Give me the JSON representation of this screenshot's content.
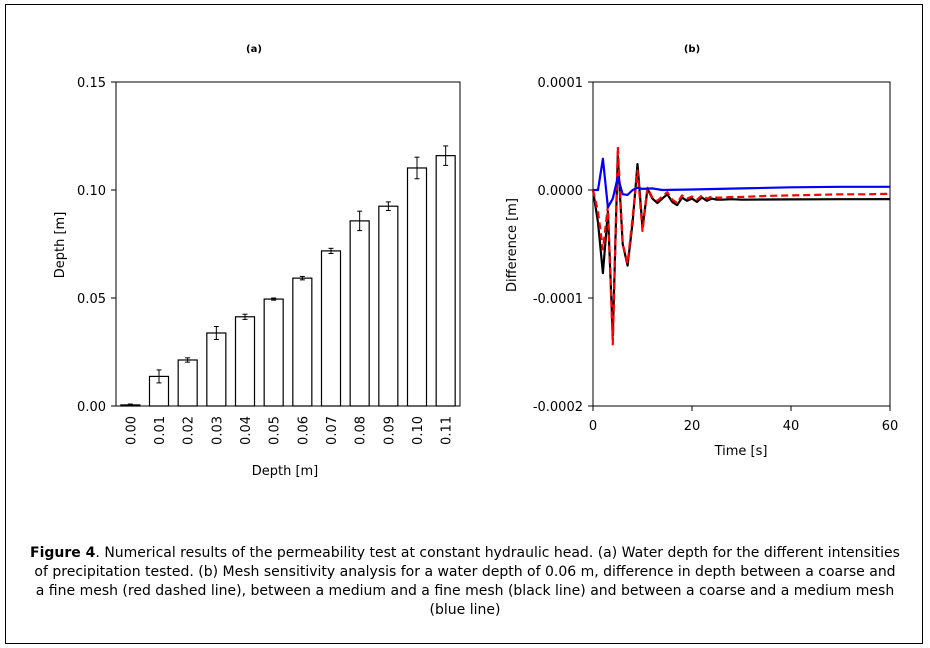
{
  "chart_data": [
    {
      "type": "bar",
      "title": "(a)",
      "xlabel": "Depth [m]",
      "ylabel": "Depth [m]",
      "categories": [
        "0.00",
        "0.01",
        "0.02",
        "0.03",
        "0.04",
        "0.05",
        "0.06",
        "0.07",
        "0.08",
        "0.09",
        "0.10",
        "0.11"
      ],
      "values": [
        0.0005,
        0.0137,
        0.0213,
        0.0338,
        0.0413,
        0.0495,
        0.0592,
        0.0718,
        0.0857,
        0.0925,
        0.1102,
        0.1159
      ],
      "errors": [
        0.0004,
        0.003,
        0.001,
        0.003,
        0.0012,
        0.0005,
        0.0008,
        0.0012,
        0.0045,
        0.002,
        0.005,
        0.0045
      ],
      "ylim": [
        0,
        0.15
      ],
      "yticks": [
        "0.00",
        "0.05",
        "0.10",
        "0.15"
      ],
      "ytick_values": [
        0,
        0.05,
        0.1,
        0.15
      ],
      "grid": false
    },
    {
      "type": "line",
      "title": "(b)",
      "xlabel": "Time [s]",
      "ylabel": "Difference [m]",
      "xlim": [
        0,
        60
      ],
      "ylim": [
        -0.0002,
        0.0001
      ],
      "xticks": [
        "0",
        "20",
        "40",
        "60"
      ],
      "xtick_values": [
        0,
        20,
        40,
        60
      ],
      "yticks": [
        "0.0001",
        "0.0000",
        "-0.0001",
        "-0.0002"
      ],
      "ytick_values": [
        0.0001,
        0,
        -0.0001,
        -0.0002
      ],
      "grid": false,
      "series": [
        {
          "color": "#000000",
          "dashed": false,
          "x": [
            0,
            1,
            2,
            3,
            4,
            5,
            6,
            7,
            8,
            9,
            10,
            11,
            12,
            13,
            14,
            15,
            16,
            17,
            18,
            19,
            20,
            21,
            22,
            23,
            24,
            25,
            26,
            28,
            30,
            35,
            40,
            45,
            50,
            55,
            60
          ],
          "y": [
            0,
            -3e-05,
            -7.7e-05,
            -2e-05,
            -0.000135,
            3.2e-05,
            -5e-05,
            -7e-05,
            -3e-05,
            2.4e-05,
            -3.5e-05,
            1e-06,
            -8e-06,
            -1.2e-05,
            -8e-06,
            -4e-06,
            -1.1e-05,
            -1.4e-05,
            -7e-06,
            -1e-05,
            -8e-06,
            -1.1e-05,
            -7e-06,
            -1e-05,
            -8e-06,
            -9e-06,
            -9e-06,
            -8.5e-06,
            -9e-06,
            -8.8e-06,
            -8.7e-06,
            -8.6e-06,
            -8.5e-06,
            -8.5e-06,
            -8.4e-06
          ]
        },
        {
          "color": "#ff0000",
          "dashed": true,
          "x": [
            0,
            1,
            2,
            3,
            4,
            5,
            6,
            7,
            8,
            9,
            10,
            11,
            12,
            13,
            14,
            15,
            16,
            17,
            18,
            19,
            20,
            21,
            22,
            23,
            24,
            25,
            26,
            28,
            30,
            35,
            40,
            45,
            50,
            55,
            60
          ],
          "y": [
            0,
            -2e-05,
            -5.5e-05,
            -1.5e-05,
            -0.000143,
            4e-05,
            -5e-05,
            -6.8e-05,
            -2.5e-05,
            1.8e-05,
            -3.8e-05,
            2e-06,
            -7e-06,
            -1e-05,
            -6e-06,
            -2e-06,
            -9e-06,
            -1.2e-05,
            -5e-06,
            -8e-06,
            -6e-06,
            -9e-06,
            -5e-06,
            -8e-06,
            -6e-06,
            -7e-06,
            -7e-06,
            -6.5e-06,
            -6.5e-06,
            -5.5e-06,
            -5e-06,
            -4.5e-06,
            -4e-06,
            -4e-06,
            -3.5e-06
          ]
        },
        {
          "color": "#0000ff",
          "dashed": false,
          "x": [
            0,
            1,
            2,
            3,
            4,
            5,
            6,
            7,
            8,
            9,
            10,
            12,
            14,
            20,
            30,
            40,
            50,
            60
          ],
          "y": [
            0,
            0,
            2.9e-05,
            -1.6e-05,
            -8e-06,
            1.2e-05,
            -4e-06,
            -4.5e-06,
            0,
            2e-06,
            1e-06,
            1.5e-06,
            0,
            5e-07,
            1.5e-06,
            2.5e-06,
            3e-06,
            3e-06
          ]
        }
      ]
    }
  ],
  "caption": {
    "label": "Figure 4",
    "text": ". Numerical results of the permeability test at constant hydraulic head. (a) Water depth for the different intensities of precipitation tested. (b) Mesh sensitivity analysis for a water depth of 0.06 m, difference in depth between a coarse and a fine mesh (red dashed line), between a medium and a fine mesh (black line) and between a coarse and a medium mesh (blue line)"
  }
}
